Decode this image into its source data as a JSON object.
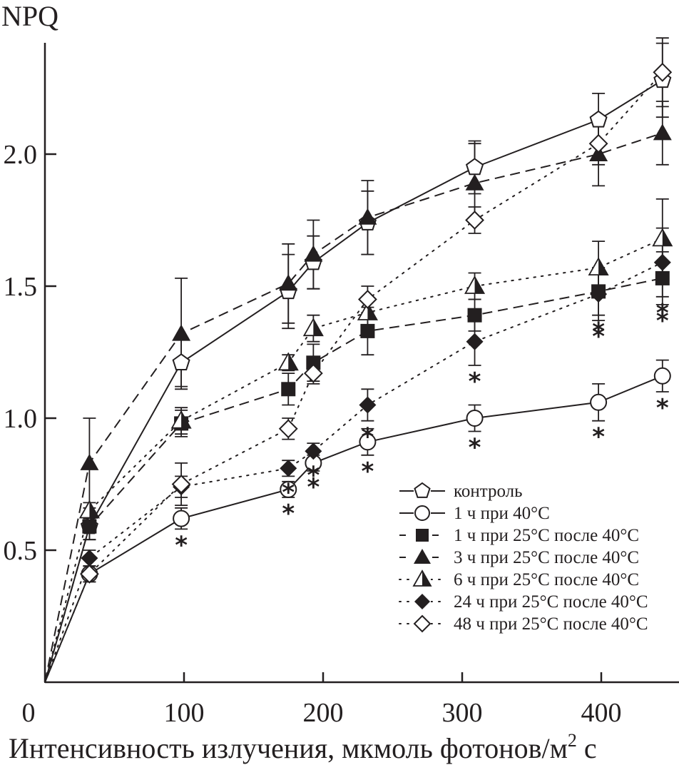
{
  "chart_data": {
    "type": "line",
    "title": "",
    "ylabel": "NPQ",
    "xlabel": "Интенсивность излучения, мкмоль фотонов/м",
    "xlabel_superscript": "2",
    "xlabel_suffix": " с",
    "xlim": [
      0,
      455
    ],
    "ylim": [
      0,
      2.4
    ],
    "x_ticks": [
      0,
      100,
      200,
      300,
      400
    ],
    "x_tick_labels": [
      "0",
      "100",
      "200",
      "300",
      "400"
    ],
    "y_ticks": [
      0.5,
      1.0,
      1.5,
      2.0
    ],
    "y_tick_labels": [
      "0.5",
      "1.0",
      "1.5",
      "2.0"
    ],
    "grid": false,
    "legend_position": "bottom-right",
    "x": [
      0,
      32,
      98,
      175,
      193,
      232,
      309,
      398,
      444
    ],
    "series": [
      {
        "name": "контроль",
        "marker": "pentagon-open",
        "line": "solid",
        "values": [
          0,
          0.59,
          1.21,
          1.48,
          1.59,
          1.74,
          1.95,
          2.13,
          2.28
        ],
        "errors": [
          0,
          0.05,
          0.09,
          0.14,
          0.1,
          0.12,
          0.1,
          0.1,
          0.14
        ],
        "significant": [
          false,
          false,
          false,
          false,
          false,
          false,
          false,
          false,
          false
        ]
      },
      {
        "name": "1 ч при 40°C",
        "marker": "circle-open",
        "line": "solid",
        "values": [
          0,
          0.41,
          0.62,
          0.73,
          0.83,
          0.91,
          1.0,
          1.06,
          1.16
        ],
        "errors": [
          0,
          0.03,
          0.04,
          0.03,
          0.03,
          0.05,
          0.05,
          0.07,
          0.06
        ],
        "significant": [
          false,
          false,
          true,
          true,
          true,
          true,
          true,
          true,
          true
        ]
      },
      {
        "name": "1 ч при 25°C после 40°C",
        "marker": "square-filled",
        "line": "dashed",
        "values": [
          0,
          0.59,
          0.98,
          1.11,
          1.21,
          1.33,
          1.39,
          1.48,
          1.53
        ],
        "errors": [
          0,
          0.05,
          0.05,
          0.06,
          0.07,
          0.09,
          0.06,
          0.09,
          0.1
        ],
        "significant": [
          false,
          false,
          false,
          false,
          false,
          false,
          false,
          true,
          true
        ]
      },
      {
        "name": "3 ч при 25°C после 40°C",
        "marker": "triangle-filled",
        "line": "dashed",
        "values": [
          0,
          0.83,
          1.32,
          1.51,
          1.62,
          1.76,
          1.89,
          2.0,
          2.08
        ],
        "errors": [
          0,
          0.17,
          0.21,
          0.15,
          0.13,
          0.14,
          0.15,
          0.12,
          0.12
        ],
        "significant": [
          false,
          false,
          false,
          false,
          false,
          false,
          false,
          false,
          false
        ]
      },
      {
        "name": "6 ч при 25°C после 40°C",
        "marker": "triangle-half",
        "line": "dotted",
        "values": [
          0,
          0.65,
          0.99,
          1.21,
          1.34,
          1.4,
          1.5,
          1.57,
          1.68
        ],
        "errors": [
          0,
          0.03,
          0.05,
          0.03,
          0.05,
          0.05,
          0.05,
          0.1,
          0.15
        ],
        "significant": [
          false,
          false,
          false,
          false,
          false,
          false,
          false,
          false,
          false
        ]
      },
      {
        "name": "24 ч при 25°C после 40°C",
        "marker": "diamond-filled",
        "line": "dotted",
        "values": [
          0,
          0.47,
          0.74,
          0.81,
          0.875,
          1.05,
          1.29,
          1.47,
          1.59
        ],
        "errors": [
          0,
          0.03,
          0.04,
          0.03,
          0.03,
          0.06,
          0.09,
          0.1,
          0.13
        ],
        "significant": [
          false,
          false,
          false,
          true,
          true,
          true,
          true,
          true,
          true
        ]
      },
      {
        "name": "48 ч при 25°C после 40°C",
        "marker": "diamond-open",
        "line": "dotted",
        "values": [
          0,
          0.41,
          0.75,
          0.96,
          1.17,
          1.45,
          1.75,
          2.04,
          2.31
        ],
        "errors": [
          0,
          0.03,
          0.08,
          0.04,
          0.04,
          0.05,
          0.05,
          0.08,
          0.13
        ],
        "significant": [
          false,
          false,
          false,
          false,
          false,
          false,
          false,
          false,
          false
        ]
      }
    ]
  },
  "annotations": {
    "significance_symbol": "*"
  }
}
